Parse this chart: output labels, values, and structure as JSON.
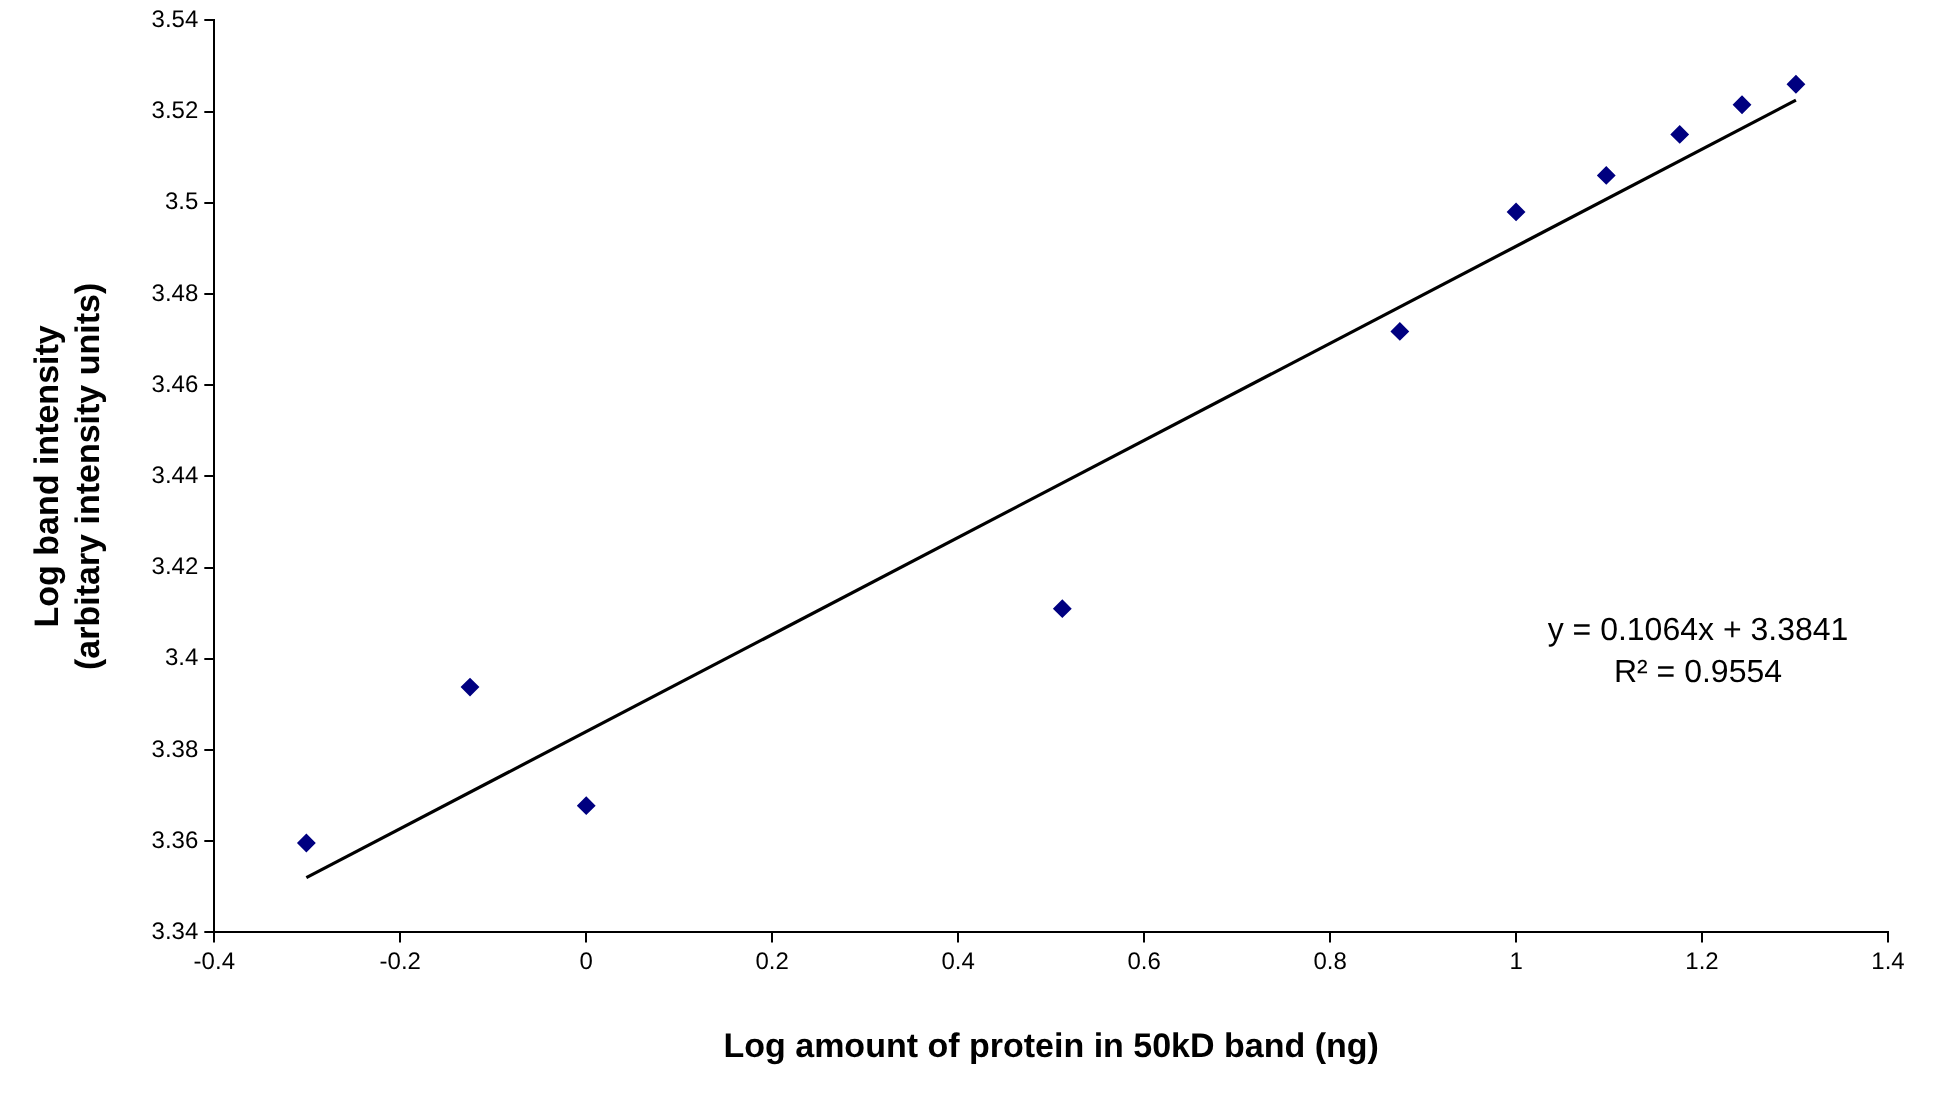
{
  "chart_data": {
    "type": "scatter",
    "xlabel": "Log amount of protein in 50kD band (ng)",
    "ylabel": "Log band intensity\n(arbitary intensity units)",
    "x": [
      -0.301,
      -0.125,
      0,
      0.512,
      0.875,
      1.0,
      1.097,
      1.176,
      1.243,
      1.301
    ],
    "series": [
      {
        "type": "scatter",
        "color": "#000080",
        "marker": "diamond",
        "values": [
          3.3596,
          3.3938,
          3.3678,
          3.411,
          3.4718,
          3.498,
          3.506,
          3.515,
          3.5215,
          3.526
        ]
      },
      {
        "type": "line",
        "color": "#000000",
        "marker": "none",
        "line_style": "solid",
        "x": [
          -0.301,
          1.301
        ],
        "values": [
          3.352,
          3.5225
        ]
      }
    ],
    "xlim": [
      -0.4,
      1.4
    ],
    "xticks": [
      -0.4,
      -0.2,
      0,
      0.2,
      0.4,
      0.6,
      0.8,
      1,
      1.2,
      1.4
    ],
    "ylim": [
      3.34,
      3.54
    ],
    "yticks": [
      3.34,
      3.36,
      3.38,
      3.4,
      3.42,
      3.44,
      3.46,
      3.48,
      3.5,
      3.52,
      3.54
    ],
    "grid": false,
    "legend": false,
    "annotations": [
      "y = 0.1064x + 3.3841",
      "R² = 0.9554"
    ]
  }
}
